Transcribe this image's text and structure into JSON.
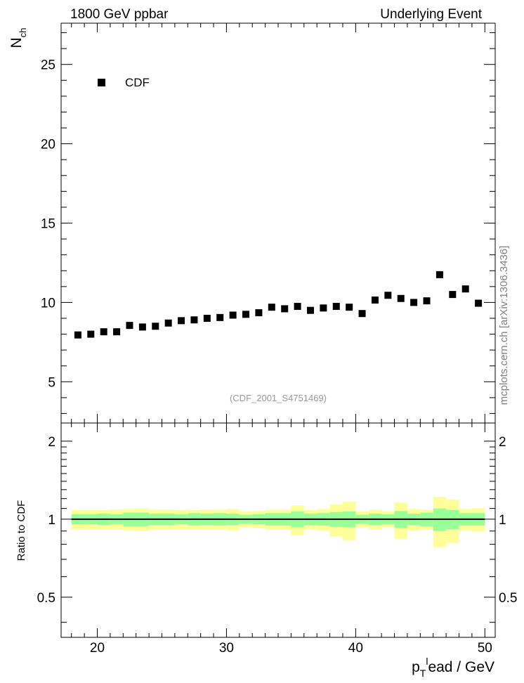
{
  "header": {
    "left_title": "1800 GeV ppbar",
    "right_title": "Underlying Event"
  },
  "watermark": "mcplots.cern.ch [arXiv:1306.3436]",
  "analysis_label": "(CDF_2001_S4751469)",
  "colors": {
    "band_inner": "#99ff99",
    "band_outer": "#ffff99",
    "marker": "#000000",
    "ratio_line": "#000000",
    "analysis_label": "#999999",
    "watermark": "#808080"
  },
  "chart_data": [
    {
      "type": "scatter",
      "panel": "main",
      "ylabel_main": "N",
      "ylabel_sub": "ch",
      "xlim": [
        17.2,
        50.8
      ],
      "ylim": [
        2.4,
        27.6
      ],
      "y_major_ticks": [
        5,
        10,
        15,
        20,
        25
      ],
      "legend": {
        "label": "CDF",
        "placement": "top-left"
      },
      "series": [
        {
          "name": "CDF",
          "x": [
            18.5,
            19.5,
            20.5,
            21.5,
            22.5,
            23.5,
            24.5,
            25.5,
            26.5,
            27.5,
            28.5,
            29.5,
            30.5,
            31.5,
            32.5,
            33.5,
            34.5,
            35.5,
            36.5,
            37.5,
            38.5,
            39.5,
            40.5,
            41.5,
            42.5,
            43.5,
            44.5,
            45.5,
            46.5,
            47.5,
            48.5,
            49.5
          ],
          "y": [
            7.95,
            8.0,
            8.15,
            8.15,
            8.55,
            8.45,
            8.5,
            8.7,
            8.85,
            8.9,
            9.0,
            9.05,
            9.2,
            9.25,
            9.35,
            9.7,
            9.6,
            9.75,
            9.5,
            9.65,
            9.75,
            9.7,
            9.3,
            10.15,
            10.45,
            10.25,
            10.0,
            10.1,
            11.75,
            10.5,
            10.85,
            9.95
          ]
        }
      ]
    },
    {
      "type": "area",
      "panel": "ratio",
      "ylabel": "Ratio to CDF",
      "xlabel_main": "p",
      "xlabel_sub": "T",
      "xlabel_sup": "l",
      "xlabel_rest": "ead / GeV",
      "xlim": [
        17.2,
        50.8
      ],
      "ylim": [
        0.35,
        2.35
      ],
      "x_major_ticks": [
        20,
        30,
        40,
        50
      ],
      "y_major_ticks": [
        0.5,
        1,
        2
      ],
      "y_tick_labels": [
        "0.5",
        "1",
        "2"
      ],
      "reference_value": 1,
      "bin_edges": [
        18,
        19,
        20,
        21,
        22,
        23,
        24,
        25,
        26,
        27,
        28,
        29,
        30,
        31,
        32,
        33,
        34,
        35,
        36,
        37,
        38,
        39,
        40,
        41,
        42,
        43,
        44,
        45,
        46,
        47,
        48,
        49,
        50
      ],
      "inner_band": {
        "lo": [
          0.955,
          0.955,
          0.95,
          0.955,
          0.94,
          0.94,
          0.95,
          0.95,
          0.955,
          0.945,
          0.95,
          0.945,
          0.95,
          0.96,
          0.955,
          0.945,
          0.945,
          0.93,
          0.95,
          0.945,
          0.935,
          0.93,
          0.96,
          0.95,
          0.955,
          0.925,
          0.95,
          0.94,
          0.9,
          0.915,
          0.945,
          0.945
        ],
        "hi": [
          1.045,
          1.045,
          1.05,
          1.045,
          1.06,
          1.06,
          1.05,
          1.05,
          1.045,
          1.055,
          1.05,
          1.055,
          1.05,
          1.04,
          1.045,
          1.055,
          1.055,
          1.07,
          1.05,
          1.055,
          1.065,
          1.07,
          1.04,
          1.05,
          1.045,
          1.075,
          1.05,
          1.06,
          1.1,
          1.085,
          1.055,
          1.055
        ]
      },
      "outer_band": {
        "lo": [
          0.915,
          0.915,
          0.915,
          0.91,
          0.905,
          0.9,
          0.91,
          0.91,
          0.915,
          0.915,
          0.91,
          0.91,
          0.905,
          0.93,
          0.925,
          0.91,
          0.91,
          0.87,
          0.915,
          0.905,
          0.86,
          0.83,
          0.93,
          0.91,
          0.93,
          0.84,
          0.905,
          0.91,
          0.78,
          0.81,
          0.905,
          0.895
        ],
        "hi": [
          1.085,
          1.085,
          1.085,
          1.09,
          1.095,
          1.1,
          1.09,
          1.09,
          1.085,
          1.085,
          1.09,
          1.09,
          1.095,
          1.07,
          1.075,
          1.09,
          1.09,
          1.13,
          1.085,
          1.095,
          1.14,
          1.17,
          1.07,
          1.09,
          1.07,
          1.16,
          1.095,
          1.09,
          1.22,
          1.19,
          1.095,
          1.105
        ]
      }
    }
  ]
}
